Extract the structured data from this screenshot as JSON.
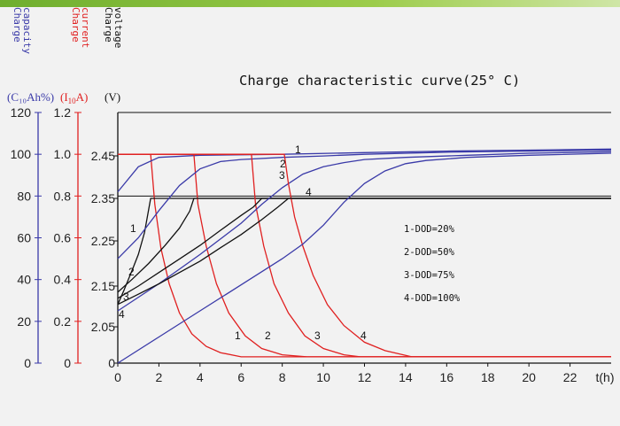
{
  "chart_data": {
    "type": "line",
    "title": "Charge characteristic curve(25° C)",
    "xlabel": "t(h)",
    "xlim": [
      0,
      24
    ],
    "x_ticks": [
      "0",
      "2",
      "4",
      "6",
      "8",
      "10",
      "12",
      "14",
      "16",
      "18",
      "20",
      "22"
    ],
    "axes": {
      "capacity": {
        "name_lines": [
          "Charge",
          "capacity"
        ],
        "unit": "(C₁₀Ah%)",
        "ticks": [
          "0",
          "20",
          "40",
          "60",
          "80",
          "100",
          "120"
        ],
        "color": "#3a3aa8"
      },
      "current": {
        "name_lines": [
          "Charge",
          "current"
        ],
        "unit_prefix": "(I",
        "unit_sub": "10",
        "unit_suffix": "A)",
        "ticks": [
          "0",
          "0.2",
          "0.4",
          "0.6",
          "0.8",
          "1.0",
          "1.2"
        ],
        "color": "#e02020"
      },
      "voltage": {
        "name_lines": [
          "Charge",
          "voltage"
        ],
        "unit": "(V)",
        "ticks": [
          "0",
          "2.05",
          "2.15",
          "2.25",
          "2.35",
          "2.45"
        ],
        "color": "#111111"
      }
    },
    "reference_lines_capacity": [
      120,
      80
    ],
    "series": [
      {
        "name": "1",
        "legend": "1-DOD=20%",
        "capacity": [
          [
            0,
            82
          ],
          [
            1,
            94
          ],
          [
            2,
            98.5
          ],
          [
            4,
            99.5
          ],
          [
            8,
            100
          ],
          [
            12,
            100.8
          ],
          [
            16,
            101.5
          ],
          [
            20,
            102
          ],
          [
            24,
            102.5
          ]
        ],
        "current": [
          [
            0,
            1.0
          ],
          [
            1.6,
            1.0
          ],
          [
            1.8,
            0.76
          ],
          [
            2.1,
            0.55
          ],
          [
            2.5,
            0.38
          ],
          [
            3.0,
            0.24
          ],
          [
            3.6,
            0.14
          ],
          [
            4.3,
            0.08
          ],
          [
            5.0,
            0.05
          ],
          [
            6.0,
            0.03
          ],
          [
            24,
            0.03
          ]
        ],
        "voltage": [
          [
            0,
            2.105
          ],
          [
            0.3,
            2.14
          ],
          [
            0.7,
            2.185
          ],
          [
            1.0,
            2.22
          ],
          [
            1.3,
            2.27
          ],
          [
            1.6,
            2.35
          ],
          [
            24,
            2.35
          ]
        ]
      },
      {
        "name": "2",
        "legend": "2-DOD=50%",
        "capacity": [
          [
            0,
            50
          ],
          [
            1,
            60
          ],
          [
            2,
            73
          ],
          [
            3,
            85
          ],
          [
            4,
            93
          ],
          [
            5,
            96.5
          ],
          [
            6,
            97.5
          ],
          [
            8,
            98.5
          ],
          [
            10,
            99.2
          ],
          [
            12,
            100
          ],
          [
            16,
            101
          ],
          [
            20,
            101.5
          ],
          [
            24,
            102
          ]
        ],
        "current": [
          [
            0,
            1.0
          ],
          [
            3.7,
            1.0
          ],
          [
            3.9,
            0.76
          ],
          [
            4.3,
            0.56
          ],
          [
            4.8,
            0.38
          ],
          [
            5.4,
            0.24
          ],
          [
            6.2,
            0.13
          ],
          [
            7.0,
            0.07
          ],
          [
            8.0,
            0.04
          ],
          [
            9.2,
            0.03
          ],
          [
            24,
            0.03
          ]
        ],
        "voltage": [
          [
            0,
            2.135
          ],
          [
            0.7,
            2.165
          ],
          [
            1.5,
            2.2
          ],
          [
            2.3,
            2.24
          ],
          [
            3.0,
            2.28
          ],
          [
            3.5,
            2.32
          ],
          [
            3.7,
            2.35
          ],
          [
            24,
            2.35
          ]
        ]
      },
      {
        "name": "3",
        "legend": "3-DOD=75%",
        "capacity": [
          [
            0,
            25
          ],
          [
            2,
            38
          ],
          [
            4,
            52
          ],
          [
            6,
            67
          ],
          [
            7,
            76
          ],
          [
            8,
            84
          ],
          [
            9,
            90.5
          ],
          [
            10,
            94
          ],
          [
            11,
            96
          ],
          [
            12,
            97.5
          ],
          [
            14,
            98.5
          ],
          [
            17,
            99.5
          ],
          [
            20,
            100.5
          ],
          [
            24,
            101.2
          ]
        ],
        "current": [
          [
            0,
            1.0
          ],
          [
            6.5,
            1.0
          ],
          [
            6.7,
            0.76
          ],
          [
            7.1,
            0.56
          ],
          [
            7.6,
            0.38
          ],
          [
            8.3,
            0.24
          ],
          [
            9.1,
            0.13
          ],
          [
            10.0,
            0.07
          ],
          [
            11.0,
            0.04
          ],
          [
            11.8,
            0.03
          ],
          [
            24,
            0.03
          ]
        ],
        "voltage": [
          [
            0,
            2.12
          ],
          [
            1,
            2.15
          ],
          [
            2,
            2.18
          ],
          [
            3,
            2.21
          ],
          [
            4,
            2.24
          ],
          [
            5,
            2.275
          ],
          [
            6,
            2.31
          ],
          [
            6.6,
            2.33
          ],
          [
            7.0,
            2.35
          ],
          [
            24,
            2.35
          ]
        ]
      },
      {
        "name": "4",
        "legend": "4-DOD=100%",
        "capacity": [
          [
            0,
            0
          ],
          [
            2,
            12.5
          ],
          [
            4,
            25
          ],
          [
            6,
            37.5
          ],
          [
            8,
            50
          ],
          [
            9,
            57
          ],
          [
            10,
            66
          ],
          [
            11,
            77
          ],
          [
            12,
            86
          ],
          [
            13,
            92
          ],
          [
            14,
            95.5
          ],
          [
            15,
            97
          ],
          [
            17,
            98.5
          ],
          [
            20,
            99.5
          ],
          [
            24,
            100.5
          ]
        ],
        "current": [
          [
            0,
            1.0
          ],
          [
            8.1,
            1.0
          ],
          [
            8.3,
            0.86
          ],
          [
            8.6,
            0.7
          ],
          [
            9.0,
            0.56
          ],
          [
            9.5,
            0.42
          ],
          [
            10.2,
            0.28
          ],
          [
            11.0,
            0.18
          ],
          [
            12.0,
            0.1
          ],
          [
            13.0,
            0.06
          ],
          [
            14.3,
            0.03
          ],
          [
            24,
            0.03
          ]
        ],
        "voltage": [
          [
            0,
            2.105
          ],
          [
            1,
            2.13
          ],
          [
            2,
            2.155
          ],
          [
            3,
            2.18
          ],
          [
            4,
            2.205
          ],
          [
            5,
            2.235
          ],
          [
            6,
            2.265
          ],
          [
            7,
            2.3
          ],
          [
            7.8,
            2.33
          ],
          [
            8.3,
            2.35
          ],
          [
            24,
            2.35
          ]
        ]
      }
    ]
  }
}
